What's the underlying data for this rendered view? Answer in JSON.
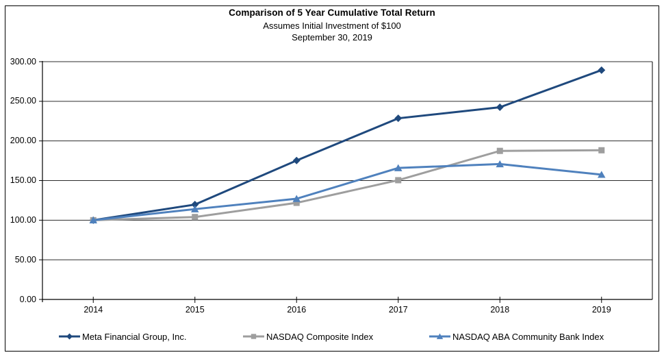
{
  "title": "Comparison of 5 Year Cumulative Total Return",
  "subtitle_line1": "Assumes Initial Investment of $100",
  "subtitle_line2": "September 30, 2019",
  "chart_data": {
    "type": "line",
    "categories": [
      "2014",
      "2015",
      "2016",
      "2017",
      "2018",
      "2019"
    ],
    "series": [
      {
        "name": "Meta Financial Group, Inc.",
        "marker": "diamond",
        "color": "#1F497D",
        "values": [
          100.0,
          119.69,
          175.31,
          228.52,
          242.53,
          289.33
        ]
      },
      {
        "name": "NASDAQ Composite Index",
        "marker": "square",
        "color": "#9E9E9E",
        "values": [
          100.0,
          104.01,
          121.87,
          150.46,
          187.44,
          188.21
        ]
      },
      {
        "name": "NASDAQ ABA Community Bank Index",
        "marker": "triangle",
        "color": "#4F81BD",
        "values": [
          100.0,
          113.96,
          127.07,
          165.86,
          170.84,
          157.45
        ]
      }
    ],
    "yaxis": {
      "min": 0,
      "max": 300,
      "tick_interval": 50,
      "tick_labels_top_to_bottom": [
        "300.00",
        "250.00",
        "200.00",
        "150.00",
        "100.00",
        "50.00",
        "0.00"
      ]
    },
    "grid": true,
    "legend_position": "bottom",
    "axis_color": "#000000",
    "gridline_color": "#2b2b2b"
  }
}
